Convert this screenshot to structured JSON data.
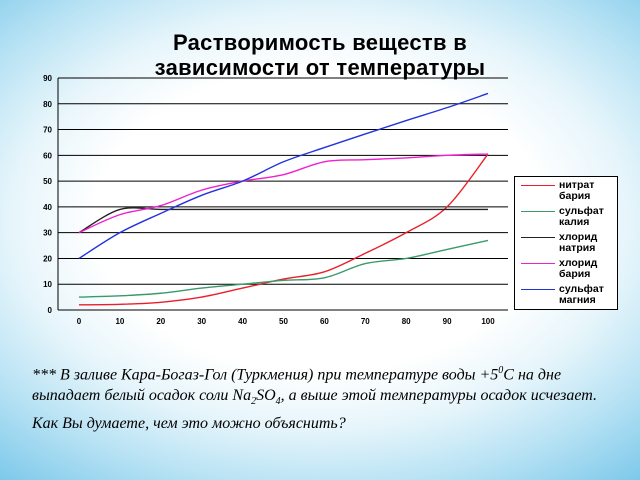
{
  "title_line1": "Растворимость веществ в",
  "title_line2": "зависимости от температуры",
  "chart_data": {
    "type": "line",
    "title": "Растворимость веществ в зависимости от температуры",
    "x": [
      0,
      10,
      20,
      30,
      40,
      50,
      60,
      70,
      80,
      90,
      100
    ],
    "x_ticks": [
      "0",
      "10",
      "20",
      "30",
      "40",
      "50",
      "60",
      "70",
      "80",
      "90",
      "100"
    ],
    "y_ticks": [
      "0",
      "10",
      "20",
      "30",
      "40",
      "50",
      "60",
      "70",
      "80",
      "90"
    ],
    "ylim": [
      0,
      90
    ],
    "xlim": [
      0,
      100
    ],
    "grid": "horizontal",
    "legend_position": "right",
    "series": [
      {
        "name": "нитрат бария",
        "label_lines": [
          "нитрат",
          "бария"
        ],
        "color": "#e8202a",
        "values": [
          2,
          2.2,
          3,
          5,
          8.5,
          12,
          14.8,
          22,
          30,
          40,
          60.5
        ]
      },
      {
        "name": "сульфат калия",
        "label_lines": [
          "сульфат",
          "калия"
        ],
        "color": "#3a9a6a",
        "values": [
          5,
          5.5,
          6.5,
          8.5,
          10,
          11.5,
          12.5,
          18,
          20,
          23.5,
          27
        ]
      },
      {
        "name": "хлорид натрия",
        "label_lines": [
          "хлорид",
          "натрия"
        ],
        "color": "#222222",
        "values": [
          30,
          39,
          39,
          39,
          39,
          39,
          39,
          39,
          39,
          39,
          39
        ]
      },
      {
        "name": "хлорид бария",
        "label_lines": [
          "хлорид",
          "бария"
        ],
        "color": "#f020d0",
        "values": [
          30,
          37,
          40.5,
          46.5,
          50,
          52.5,
          57.5,
          58.3,
          59,
          60,
          60.5
        ]
      },
      {
        "name": "сульфат магния",
        "label_lines": [
          "сульфат",
          "магния"
        ],
        "color": "#2233dd",
        "values": [
          20,
          30,
          37.5,
          44.5,
          50,
          57.5,
          63,
          68.3,
          73.5,
          78.5,
          84
        ]
      }
    ]
  },
  "note": {
    "prefix": "*** В заливе Кара-Богаз-Гол (Туркмения) при температуре воды +5",
    "deg_sup": "0",
    "mid": "С на дне выпадает белый осадок соли Na",
    "sub1": "2",
    "mid2": "SO",
    "sub2": "4",
    "suffix": ", а выше этой температуры осадок исчезает. Как Вы думаете, чем это можно объяснить?"
  }
}
